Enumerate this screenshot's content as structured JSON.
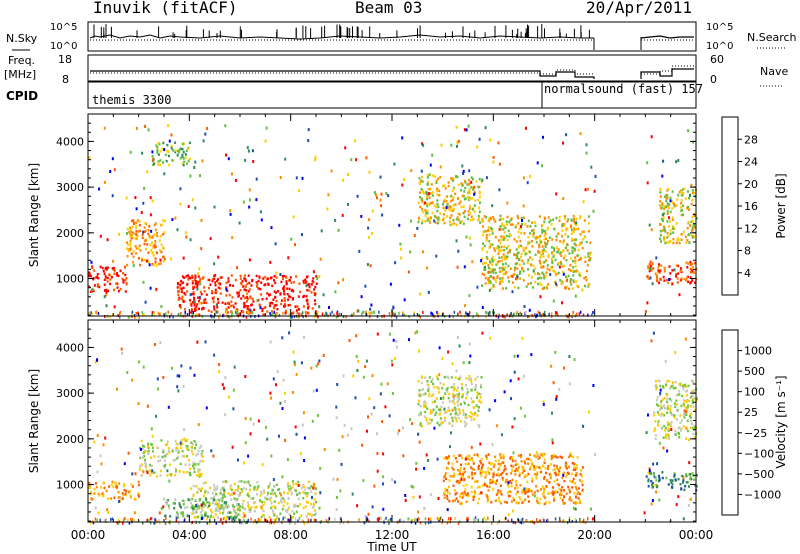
{
  "header": {
    "station": "Inuvik (fitACF)",
    "beam": "Beam 03",
    "date": "20/Apr/2011"
  },
  "top_panels": {
    "nsky_label": "N.Sky",
    "nsky_ticks": [
      "10^5",
      "10^0"
    ],
    "nsearch_label": "N.Search",
    "nsearch_ticks": [
      "10^5",
      "10^0"
    ],
    "freq_label": "Freq.",
    "freq_unit": "[MHz]",
    "freq_ticks": [
      "18",
      "8"
    ],
    "nave_label": "Nave",
    "nave_ticks": [
      "60",
      "0"
    ],
    "cpid_label": "CPID",
    "cpid_segments": [
      {
        "label": "themis 3300",
        "start_hour": 0,
        "end_hour": 18
      },
      {
        "label": "normalsound (fast) 157",
        "start_hour": 18,
        "end_hour": 24
      }
    ]
  },
  "chart_data": [
    {
      "type": "heatmap",
      "name": "power",
      "ylabel": "Slant Range [km]",
      "yticks": [
        1000,
        2000,
        3000,
        4000
      ],
      "ylim": [
        180,
        4600
      ],
      "xlabel": "",
      "xlim": [
        0,
        24
      ],
      "colorbar_label": "Power [dB]",
      "colorbar_ticks": [
        "28",
        "24",
        "20",
        "16",
        "12",
        "8",
        "4"
      ],
      "colors": [
        "#0000ff",
        "#1e4fb0",
        "#2e8b57",
        "#5fbf3f",
        "#ffcc00",
        "#ff8c00",
        "#ff5a00",
        "#ff0000"
      ],
      "data_gaps_hours": [
        [
          20.0,
          21.9
        ]
      ],
      "echo_regions": [
        {
          "t0": 0.0,
          "t1": 1.5,
          "r0": 700,
          "r1": 1300,
          "level": 7
        },
        {
          "t0": 1.5,
          "t1": 3.0,
          "r0": 1300,
          "r1": 2300,
          "level": 5
        },
        {
          "t0": 3.5,
          "t1": 9.0,
          "r0": 250,
          "r1": 1100,
          "level": 7
        },
        {
          "t0": 2.5,
          "t1": 4.0,
          "r0": 3500,
          "r1": 4000,
          "level": 3
        },
        {
          "t0": 13.0,
          "t1": 15.5,
          "r0": 2200,
          "r1": 3300,
          "level": 4
        },
        {
          "t0": 15.5,
          "t1": 19.8,
          "r0": 800,
          "r1": 2400,
          "level": 4
        },
        {
          "t0": 22.0,
          "t1": 24.0,
          "r0": 900,
          "r1": 1400,
          "level": 6
        },
        {
          "t0": 22.5,
          "t1": 24.0,
          "r0": 1800,
          "r1": 3000,
          "level": 4
        }
      ]
    },
    {
      "type": "heatmap",
      "name": "velocity",
      "ylabel": "Slant Range [km]",
      "yticks": [
        1000,
        2000,
        3000,
        4000
      ],
      "ylim": [
        180,
        4600
      ],
      "xlabel": "Time UT",
      "xlim": [
        0,
        24
      ],
      "xticks": [
        "00:00",
        "04:00",
        "08:00",
        "12:00",
        "16:00",
        "20:00",
        "00:00"
      ],
      "colorbar_label": "Velocity [m s⁻¹]",
      "colorbar_ticks": [
        "1000",
        "500",
        "100",
        "25",
        "−25",
        "−100",
        "−500",
        "−1000"
      ],
      "colors": [
        "#ff0000",
        "#ff5a00",
        "#ff8c00",
        "#ffcc00",
        "#c8c8c0",
        "#6ec63c",
        "#2e8b57",
        "#1e4fb0",
        "#0000ff"
      ],
      "data_gaps_hours": [
        [
          20.0,
          21.9
        ]
      ],
      "echo_regions": [
        {
          "t0": 0.0,
          "t1": 2.0,
          "r0": 700,
          "r1": 1100,
          "level": 2
        },
        {
          "t0": 2.0,
          "t1": 4.5,
          "r0": 1200,
          "r1": 2000,
          "level": 4
        },
        {
          "t0": 4.0,
          "t1": 9.0,
          "r0": 300,
          "r1": 1100,
          "level": 4
        },
        {
          "t0": 3.0,
          "t1": 6.0,
          "r0": 300,
          "r1": 700,
          "level": 5
        },
        {
          "t0": 13.0,
          "t1": 15.5,
          "r0": 2300,
          "r1": 3400,
          "level": 4
        },
        {
          "t0": 14.0,
          "t1": 19.5,
          "r0": 600,
          "r1": 1700,
          "level": 2
        },
        {
          "t0": 22.0,
          "t1": 24.0,
          "r0": 900,
          "r1": 1300,
          "level": 6
        },
        {
          "t0": 22.3,
          "t1": 24.0,
          "r0": 2000,
          "r1": 3300,
          "level": 4
        }
      ]
    }
  ]
}
